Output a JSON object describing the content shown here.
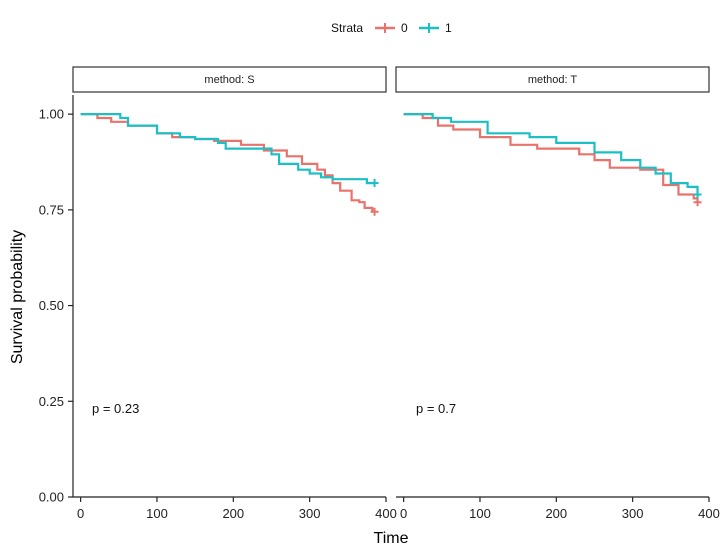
{
  "chart_data": {
    "type": "line",
    "subtype": "kaplan-meier step",
    "xlabel": "Time",
    "ylabel": "Survival probability",
    "xlim": [
      -10,
      400
    ],
    "ylim": [
      0,
      1.05
    ],
    "x_ticks": [
      0,
      100,
      200,
      300,
      400
    ],
    "y_ticks": [
      0.0,
      0.25,
      0.5,
      0.75,
      1.0
    ],
    "y_tick_labels": [
      "0.00",
      "0.25",
      "0.50",
      "0.75",
      "1.00"
    ],
    "grid": false,
    "legend": {
      "title": "Strata",
      "position": "top-center",
      "entries": [
        {
          "label": "0",
          "color": "#E8726C"
        },
        {
          "label": "1",
          "color": "#1BBFC4"
        }
      ]
    },
    "panels": [
      {
        "strip_label": "method: S",
        "p_value_label": "p = 0.23",
        "series": [
          {
            "name": "0",
            "color": "#E8726C",
            "x": [
              0,
              22,
              40,
              62,
              100,
              120,
              150,
              175,
              210,
              240,
              270,
              290,
              310,
              320,
              330,
              340,
              355,
              365,
              372,
              382
            ],
            "y": [
              1.0,
              0.99,
              0.98,
              0.97,
              0.95,
              0.94,
              0.935,
              0.93,
              0.92,
              0.905,
              0.89,
              0.87,
              0.855,
              0.84,
              0.82,
              0.8,
              0.775,
              0.77,
              0.755,
              0.745
            ],
            "censor_x": [
              385
            ],
            "censor_y": [
              0.745
            ]
          },
          {
            "name": "1",
            "color": "#1BBFC4",
            "x": [
              0,
              52,
              62,
              100,
              130,
              150,
              180,
              190,
              250,
              260,
              285,
              300,
              315,
              330,
              350,
              375,
              385
            ],
            "y": [
              1.0,
              0.99,
              0.97,
              0.95,
              0.94,
              0.935,
              0.925,
              0.91,
              0.895,
              0.87,
              0.855,
              0.845,
              0.835,
              0.83,
              0.83,
              0.82,
              0.82
            ],
            "censor_x": [
              385
            ],
            "censor_y": [
              0.82
            ]
          }
        ]
      },
      {
        "strip_label": "method: T",
        "p_value_label": "p = 0.7",
        "series": [
          {
            "name": "0",
            "color": "#E8726C",
            "x": [
              0,
              25,
              45,
              65,
              100,
              140,
              175,
              230,
              250,
              270,
              310,
              340,
              360,
              380,
              385
            ],
            "y": [
              1.0,
              0.99,
              0.97,
              0.96,
              0.94,
              0.92,
              0.91,
              0.895,
              0.88,
              0.86,
              0.855,
              0.815,
              0.79,
              0.78,
              0.77
            ],
            "censor_x": [
              385
            ],
            "censor_y": [
              0.77
            ]
          },
          {
            "name": "1",
            "color": "#1BBFC4",
            "x": [
              0,
              38,
              62,
              110,
              165,
              200,
              250,
              285,
              310,
              330,
              350,
              372,
              385
            ],
            "y": [
              1.0,
              0.99,
              0.98,
              0.95,
              0.94,
              0.925,
              0.9,
              0.88,
              0.86,
              0.845,
              0.82,
              0.81,
              0.79
            ],
            "censor_x": [
              385
            ],
            "censor_y": [
              0.79
            ]
          }
        ]
      }
    ]
  }
}
